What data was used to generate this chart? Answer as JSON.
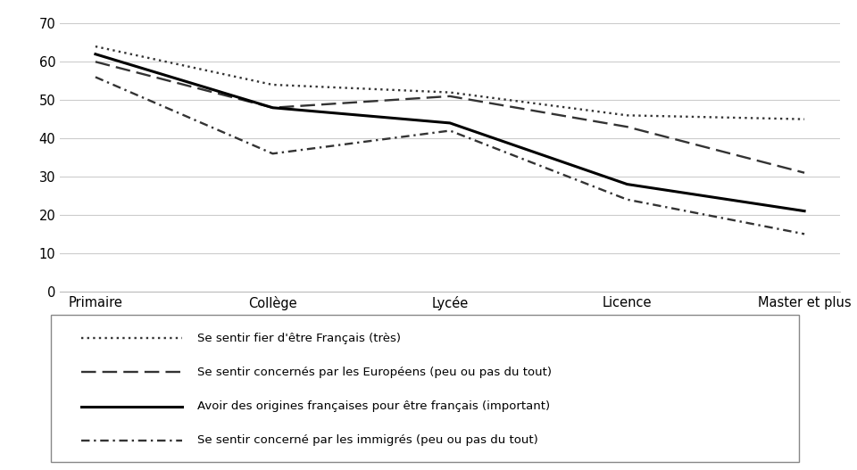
{
  "categories": [
    "Primaire",
    "Collège",
    "Lycée",
    "Licence",
    "Master et plus"
  ],
  "series": [
    {
      "label": "Se sentir fier d'être Français (très)",
      "values": [
        64,
        54,
        52,
        46,
        45
      ],
      "linestyle": "dotted",
      "color": "#333333",
      "linewidth": 1.7
    },
    {
      "label": "Se sentir concernés par les Européens (peu ou pas du tout)",
      "values": [
        60,
        48,
        51,
        43,
        31
      ],
      "linestyle": "dashed_long",
      "color": "#333333",
      "linewidth": 1.7
    },
    {
      "label": "Avoir des origines françaises pour être français (important)",
      "values": [
        62,
        48,
        44,
        28,
        21
      ],
      "linestyle": "solid",
      "color": "#000000",
      "linewidth": 2.2
    },
    {
      "label": "Se sentir concerné par les immigrés (peu ou pas du tout)",
      "values": [
        56,
        36,
        42,
        24,
        15
      ],
      "linestyle": "dashed_short",
      "color": "#333333",
      "linewidth": 1.7
    }
  ],
  "ylim": [
    0,
    70
  ],
  "yticks": [
    0,
    10,
    20,
    30,
    40,
    50,
    60,
    70
  ],
  "background_color": "#ffffff",
  "legend_fontsize": 9.5,
  "tick_fontsize": 10.5,
  "figwidth": 9.6,
  "figheight": 5.27,
  "dpi": 100
}
